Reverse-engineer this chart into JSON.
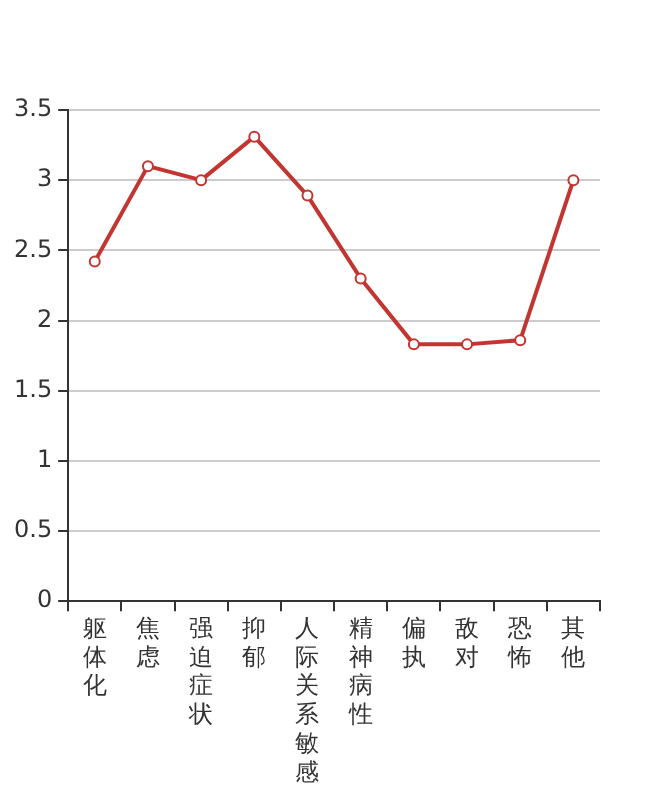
{
  "chart_data": {
    "type": "line",
    "categories": [
      "躯体化",
      "焦虑",
      "强迫症状",
      "抑郁",
      "人际关系敏感",
      "精神病性",
      "偏执",
      "敌对",
      "恐怖",
      "其他"
    ],
    "series": [
      {
        "color": "#c23531",
        "values": [
          2.42,
          3.1,
          3.0,
          3.31,
          2.89,
          2.3,
          1.83,
          1.83,
          1.86,
          3.0
        ]
      }
    ],
    "ylim": [
      0,
      3.5
    ],
    "yticks": [
      0,
      0.5,
      1,
      1.5,
      2,
      2.5,
      3,
      3.5
    ],
    "grid": "y",
    "legend": false,
    "marker": "circle",
    "line_style": "solid"
  }
}
